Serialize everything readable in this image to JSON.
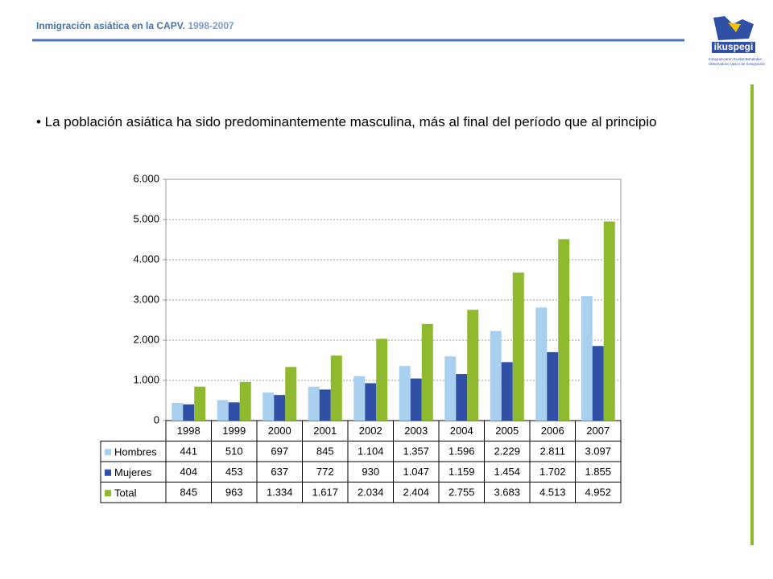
{
  "header": {
    "title": "Inmigración asiática  en la CAPV.",
    "subtitle": "1998-2007"
  },
  "logo": {
    "name": "ikuspegi",
    "lines": [
      "Inmigrazioaren Euskal Behatokia",
      "Observatorio Vasco de Inmigración"
    ]
  },
  "bullet": "• La población asiática ha sido predominantemente masculina, más al final del período que al principio",
  "chart_data": {
    "type": "bar",
    "categories": [
      "1998",
      "1999",
      "2000",
      "2001",
      "2002",
      "2003",
      "2004",
      "2005",
      "2006",
      "2007"
    ],
    "series": [
      {
        "name": "Hombres",
        "color": "#a9d0ef",
        "values": [
          441,
          510,
          697,
          845,
          1104,
          1357,
          1596,
          2229,
          2811,
          3097
        ],
        "value_labels": [
          "441",
          "510",
          "697",
          "845",
          "1.104",
          "1.357",
          "1.596",
          "2.229",
          "2.811",
          "3.097"
        ]
      },
      {
        "name": "Mujeres",
        "color": "#2f50a4",
        "values": [
          404,
          453,
          637,
          772,
          930,
          1047,
          1159,
          1454,
          1702,
          1855
        ],
        "value_labels": [
          "404",
          "453",
          "637",
          "772",
          "930",
          "1.047",
          "1.159",
          "1.454",
          "1.702",
          "1.855"
        ]
      },
      {
        "name": "Total",
        "color": "#8fba2f",
        "values": [
          845,
          963,
          1334,
          1617,
          2034,
          2404,
          2755,
          3683,
          4513,
          4952
        ],
        "value_labels": [
          "845",
          "963",
          "1.334",
          "1.617",
          "2.034",
          "2.404",
          "2.755",
          "3.683",
          "4.513",
          "4.952"
        ]
      }
    ],
    "ylim": [
      0,
      6000
    ],
    "yticks": [
      0,
      {
        "value": 1000,
        "label": "1.000"
      },
      {
        "value": 2000,
        "label": "2.000"
      },
      {
        "value": 3000,
        "label": "3.000"
      },
      {
        "value": 4000,
        "label": "4.000"
      },
      {
        "value": 5000,
        "label": "5.000"
      },
      {
        "value": 6000,
        "label": "6.000"
      }
    ],
    "grid": true
  }
}
